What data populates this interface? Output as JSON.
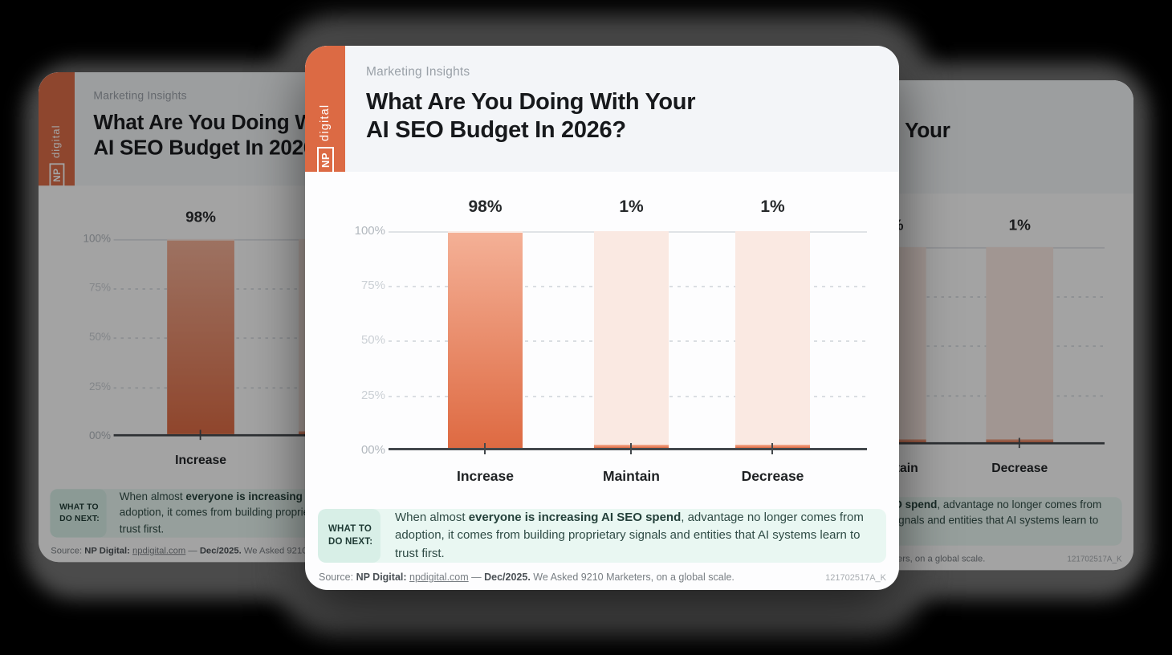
{
  "page": {
    "background": "#000000",
    "backdrop_color": "#4B4B4B"
  },
  "brand": {
    "np": "NP",
    "word": "digital",
    "banner_color": "#DC6A44"
  },
  "eyebrow": "Marketing Insights",
  "title": {
    "line1": "What Are You Doing With Your",
    "line2": "AI SEO Budget In 2026?"
  },
  "chart_data": {
    "type": "bar",
    "title": "What Are You Doing With Your AI SEO Budget In 2026?",
    "categories": [
      "Increase",
      "Maintain",
      "Decrease"
    ],
    "values": [
      98,
      1,
      1
    ],
    "value_labels": [
      "98%",
      "1%",
      "1%"
    ],
    "y_ticks": [
      "100%",
      "75%",
      "50%",
      "25%",
      "00%"
    ],
    "ylim": [
      0,
      100
    ],
    "xlabel": "",
    "ylabel": "",
    "legend": "none",
    "grid": "horizontal; solid line at 100%, dotted lines at 75%, 50%, 25%",
    "colors": {
      "bar_gradient_top": "#F4B096",
      "bar_gradient_bottom": "#DE6A42",
      "bar_track": "#FAE9E2",
      "axis": "#43484C",
      "tick_label": "#C9CED3"
    }
  },
  "callout": {
    "label_line1": "WHAT TO",
    "label_line2": "DO NEXT:",
    "text_prefix": "When almost ",
    "text_bold": "everyone is increasing AI SEO spend",
    "text_suffix": ", advantage no longer comes from adoption, it comes from building proprietary signals and entities that AI systems learn to trust first.",
    "label_bg": "#D8EFE7",
    "box_bg": "#E9F7F2"
  },
  "source": {
    "prefix": "Source: ",
    "brand_bold": "NP Digital: ",
    "link": "npdigital.com",
    "dash": " — ",
    "date_bold": "Dec/2025.",
    "rest": " We Asked 9210 Marketers, on a global scale.",
    "doc_id": "121702517A_K"
  }
}
